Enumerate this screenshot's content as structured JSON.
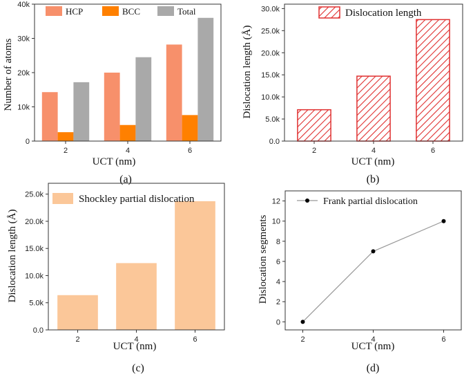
{
  "chart_data": [
    {
      "type": "bar",
      "panel_label": "(a)",
      "categories": [
        "2",
        "4",
        "6"
      ],
      "series": [
        {
          "name": "HCP",
          "values": [
            14300,
            20000,
            28200
          ],
          "color": "#f7906b"
        },
        {
          "name": "BCC",
          "values": [
            2600,
            4700,
            7600
          ],
          "color": "#ff8000"
        },
        {
          "name": "Total",
          "values": [
            17200,
            24500,
            36000
          ],
          "color": "#a9a9a9"
        }
      ],
      "xlabel": "UCT (nm)",
      "ylabel": "Number of atoms",
      "ylim": [
        0,
        40000
      ],
      "yticks": [
        0,
        10000,
        20000,
        30000,
        40000
      ],
      "ytick_labels": [
        "0",
        "10k",
        "20k",
        "30k",
        "40k"
      ],
      "legend_position": "top"
    },
    {
      "type": "bar",
      "panel_label": "(b)",
      "categories": [
        "2",
        "4",
        "6"
      ],
      "series": [
        {
          "name": "Dislocation length",
          "values": [
            7100,
            14700,
            27500
          ],
          "color": "#e03030",
          "fill": "hatched"
        }
      ],
      "xlabel": "UCT (nm)",
      "ylabel": "Dislocation length (Å)",
      "ylim": [
        0,
        31000
      ],
      "yticks": [
        0,
        5000,
        10000,
        15000,
        20000,
        25000,
        30000
      ],
      "ytick_labels": [
        "0.0",
        "5.0k",
        "10.0k",
        "15.0k",
        "20.0k",
        "25.0k",
        "30.0k"
      ],
      "legend_position": "top-right"
    },
    {
      "type": "bar",
      "panel_label": "(c)",
      "categories": [
        "2",
        "4",
        "6"
      ],
      "series": [
        {
          "name": "Shockley partial dislocation",
          "values": [
            6400,
            12300,
            23700
          ],
          "color": "#fbc799"
        }
      ],
      "xlabel": "UCT (nm)",
      "ylabel": "Dislocation length (Å)",
      "ylim": [
        0,
        27000
      ],
      "yticks": [
        0,
        5000,
        10000,
        15000,
        20000,
        25000
      ],
      "ytick_labels": [
        "0.0",
        "5.0k",
        "10.0k",
        "15.0k",
        "20.0k",
        "25.0k"
      ],
      "legend_position": "top-left"
    },
    {
      "type": "line",
      "panel_label": "(d)",
      "x": [
        2,
        4,
        6
      ],
      "series": [
        {
          "name": "Frank partial dislocation",
          "values": [
            0,
            7,
            10
          ],
          "color": "#000000",
          "line_color": "#999999"
        }
      ],
      "xlabel": "UCT (nm)",
      "ylabel": "Dislocation  segments",
      "xlim": [
        1.5,
        6.5
      ],
      "ylim": [
        -0.8,
        13
      ],
      "xticks": [
        2,
        4,
        6
      ],
      "yticks": [
        0,
        2,
        4,
        6,
        8,
        10,
        12
      ],
      "legend_position": "top-left"
    }
  ]
}
